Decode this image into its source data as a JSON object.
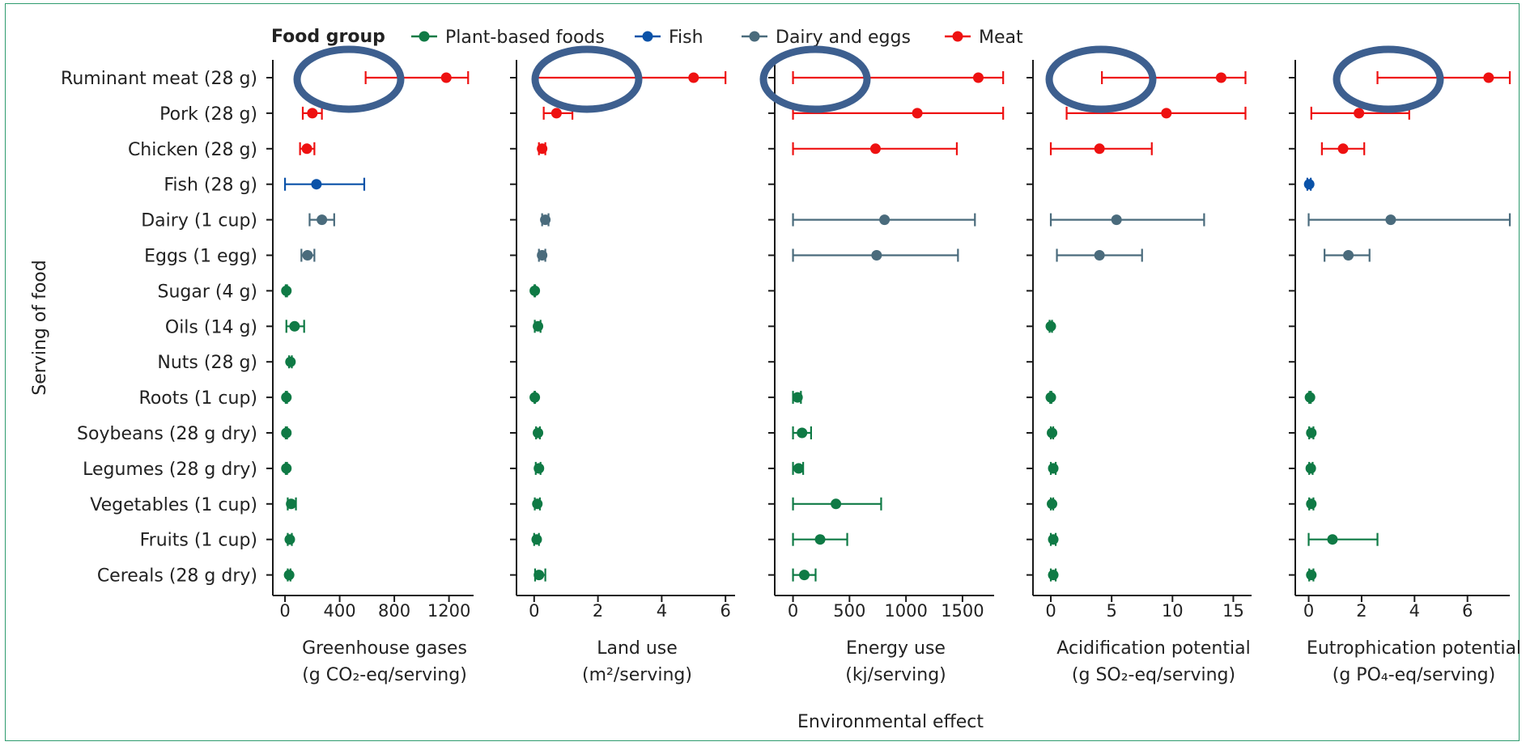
{
  "chart_data": {
    "type": "scatter",
    "legend": {
      "title": "Food group",
      "placement": "top",
      "items": [
        {
          "name": "Plant-based foods",
          "color": "#0f7a45"
        },
        {
          "name": "Fish",
          "color": "#0a52a8"
        },
        {
          "name": "Dairy and eggs",
          "color": "#4a6b7c"
        },
        {
          "name": "Meat",
          "color": "#ee1111"
        }
      ]
    },
    "y_axis_title": "Serving of food",
    "x_axis_title": "Environmental effect",
    "rows": [
      {
        "label": "Ruminant meat (28 g)",
        "group": "Meat"
      },
      {
        "label": "Pork (28 g)",
        "group": "Meat"
      },
      {
        "label": "Chicken (28 g)",
        "group": "Meat"
      },
      {
        "label": "Fish (28 g)",
        "group": "Fish"
      },
      {
        "label": "Dairy (1 cup)",
        "group": "Dairy and eggs"
      },
      {
        "label": "Eggs (1 egg)",
        "group": "Dairy and eggs"
      },
      {
        "label": "Sugar (4 g)",
        "group": "Plant-based foods"
      },
      {
        "label": "Oils (14 g)",
        "group": "Plant-based foods"
      },
      {
        "label": "Nuts (28 g)",
        "group": "Plant-based foods"
      },
      {
        "label": "Roots (1 cup)",
        "group": "Plant-based foods"
      },
      {
        "label": "Soybeans (28 g dry)",
        "group": "Plant-based foods"
      },
      {
        "label": "Legumes (28 g dry)",
        "group": "Plant-based foods"
      },
      {
        "label": "Vegetables (1 cup)",
        "group": "Plant-based foods"
      },
      {
        "label": "Fruits (1 cup)",
        "group": "Plant-based foods"
      },
      {
        "label": "Cereals (28 g dry)",
        "group": "Plant-based foods"
      }
    ],
    "panels": [
      {
        "title_lines": [
          "Greenhouse gases",
          "(g CO₂-eq/serving)"
        ],
        "xlim": [
          -30,
          1380
        ],
        "ticks": [
          0,
          400,
          800,
          1200
        ],
        "tick_labels": [
          "0",
          "400",
          "800",
          "1200"
        ],
        "highlight_circle": true,
        "points": [
          {
            "mean": 1180,
            "low": 590,
            "high": 1340
          },
          {
            "mean": 200,
            "low": 130,
            "high": 270
          },
          {
            "mean": 160,
            "low": 110,
            "high": 215
          },
          {
            "mean": 230,
            "low": 0,
            "high": 580
          },
          {
            "mean": 270,
            "low": 180,
            "high": 360
          },
          {
            "mean": 165,
            "low": 120,
            "high": 215
          },
          {
            "mean": 10,
            "low": 5,
            "high": 15
          },
          {
            "mean": 70,
            "low": 10,
            "high": 140
          },
          {
            "mean": 40,
            "low": 30,
            "high": 50
          },
          {
            "mean": 10,
            "low": 5,
            "high": 15
          },
          {
            "mean": 10,
            "low": 5,
            "high": 15
          },
          {
            "mean": 10,
            "low": 5,
            "high": 15
          },
          {
            "mean": 45,
            "low": 20,
            "high": 80
          },
          {
            "mean": 35,
            "low": 20,
            "high": 50
          },
          {
            "mean": 30,
            "low": 20,
            "high": 40
          }
        ]
      },
      {
        "title_lines": [
          "Land use",
          "(m²/serving)"
        ],
        "xlim": [
          -0.3,
          6.3
        ],
        "ticks": [
          0,
          2,
          4,
          6
        ],
        "tick_labels": [
          "0",
          "2",
          "4",
          "6"
        ],
        "highlight_circle": true,
        "points": [
          {
            "mean": 5.0,
            "low": 0.05,
            "high": 6.0
          },
          {
            "mean": 0.7,
            "low": 0.3,
            "high": 1.2
          },
          {
            "mean": 0.25,
            "low": 0.15,
            "high": 0.35
          },
          null,
          {
            "mean": 0.35,
            "low": 0.25,
            "high": 0.45
          },
          {
            "mean": 0.25,
            "low": 0.15,
            "high": 0.35
          },
          {
            "mean": 0.02,
            "low": 0.01,
            "high": 0.03
          },
          {
            "mean": 0.12,
            "low": 0.02,
            "high": 0.2
          },
          null,
          {
            "mean": 0.02,
            "low": 0.01,
            "high": 0.03
          },
          {
            "mean": 0.12,
            "low": 0.06,
            "high": 0.18
          },
          {
            "mean": 0.15,
            "low": 0.05,
            "high": 0.2
          },
          {
            "mean": 0.1,
            "low": 0.02,
            "high": 0.18
          },
          {
            "mean": 0.08,
            "low": 0.0,
            "high": 0.15
          },
          {
            "mean": 0.15,
            "low": 0.03,
            "high": 0.35
          }
        ]
      },
      {
        "title_lines": [
          "Energy use",
          "(kj/serving)"
        ],
        "xlim": [
          -90,
          1780
        ],
        "ticks": [
          0,
          500,
          1000,
          1500
        ],
        "tick_labels": [
          "0",
          "500",
          "1000",
          "1500"
        ],
        "highlight_circle": true,
        "points": [
          {
            "mean": 1640,
            "low": 0,
            "high": 1860
          },
          {
            "mean": 1100,
            "low": 0,
            "high": 1860
          },
          {
            "mean": 730,
            "low": 0,
            "high": 1450
          },
          null,
          {
            "mean": 810,
            "low": 0,
            "high": 1610
          },
          {
            "mean": 740,
            "low": 0,
            "high": 1460
          },
          null,
          null,
          null,
          {
            "mean": 40,
            "low": 0,
            "high": 70
          },
          {
            "mean": 80,
            "low": 0,
            "high": 160
          },
          {
            "mean": 50,
            "low": 0,
            "high": 90
          },
          {
            "mean": 380,
            "low": 0,
            "high": 780
          },
          {
            "mean": 240,
            "low": 0,
            "high": 480
          },
          {
            "mean": 100,
            "low": 0,
            "high": 200
          }
        ]
      },
      {
        "title_lines": [
          "Acidification potential",
          "(g SO₂-eq/serving)"
        ],
        "xlim": [
          -0.8,
          16.5
        ],
        "ticks": [
          0,
          5,
          10,
          15
        ],
        "tick_labels": [
          "0",
          "5",
          "10",
          "15"
        ],
        "highlight_circle": true,
        "points": [
          {
            "mean": 14.0,
            "low": 4.2,
            "high": 16.0
          },
          {
            "mean": 9.5,
            "low": 1.3,
            "high": 16.0
          },
          {
            "mean": 4.0,
            "low": 0.0,
            "high": 8.3
          },
          null,
          {
            "mean": 5.4,
            "low": 0.0,
            "high": 12.6
          },
          {
            "mean": 4.0,
            "low": 0.5,
            "high": 7.5
          },
          null,
          {
            "mean": 0.0,
            "low": -0.1,
            "high": 0.1
          },
          null,
          {
            "mean": 0.0,
            "low": -0.05,
            "high": 0.05
          },
          {
            "mean": 0.1,
            "low": 0.0,
            "high": 0.2
          },
          {
            "mean": 0.2,
            "low": 0.0,
            "high": 0.4
          },
          {
            "mean": 0.1,
            "low": 0.0,
            "high": 0.2
          },
          {
            "mean": 0.2,
            "low": 0.0,
            "high": 0.4
          },
          {
            "mean": 0.2,
            "low": 0.0,
            "high": 0.4
          }
        ]
      },
      {
        "title_lines": [
          "Eutrophication potential",
          "(g PO₄-eq/serving)"
        ],
        "xlim": [
          -0.2,
          7.6
        ],
        "ticks": [
          0,
          2,
          4,
          6
        ],
        "tick_labels": [
          "0",
          "2",
          "4",
          "6"
        ],
        "highlight_circle": true,
        "points": [
          {
            "mean": 6.8,
            "low": 2.6,
            "high": 7.6
          },
          {
            "mean": 1.9,
            "low": 0.1,
            "high": 3.8
          },
          {
            "mean": 1.3,
            "low": 0.5,
            "high": 2.1
          },
          {
            "mean": 0.02,
            "low": -0.05,
            "high": 0.08
          },
          {
            "mean": 3.1,
            "low": 0.0,
            "high": 7.6
          },
          {
            "mean": 1.5,
            "low": 0.6,
            "high": 2.3
          },
          null,
          null,
          null,
          {
            "mean": 0.05,
            "low": 0.02,
            "high": 0.08
          },
          {
            "mean": 0.1,
            "low": 0.02,
            "high": 0.18
          },
          {
            "mean": 0.08,
            "low": 0.02,
            "high": 0.15
          },
          {
            "mean": 0.1,
            "low": 0.02,
            "high": 0.18
          },
          {
            "mean": 0.9,
            "low": 0.0,
            "high": 2.6
          },
          {
            "mean": 0.1,
            "low": 0.02,
            "high": 0.18
          }
        ]
      }
    ],
    "colors": {
      "highlight": "#3d5f8f",
      "axis": "#1a1a1a"
    }
  }
}
